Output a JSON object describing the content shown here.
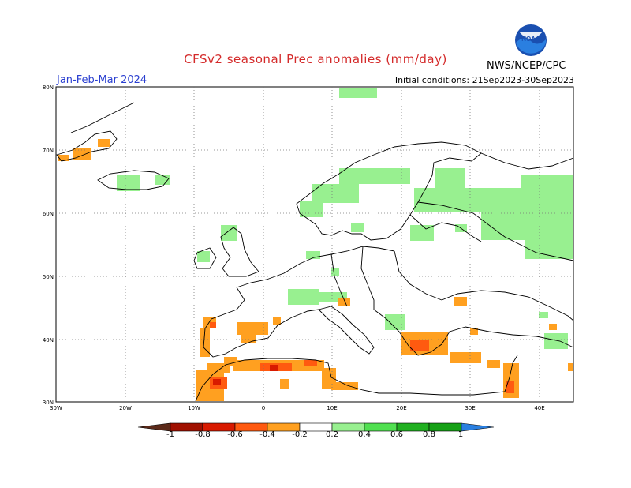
{
  "header": {
    "title": "CFSv2 seasonal Prec anomalies (mm/day)",
    "season": "Jan-Feb-Mar 2024",
    "initial_conditions": "Initial conditions: 21Sep2023-30Sep2023",
    "agency": "NWS/NCEP/CPC",
    "logo_text": "NOAA"
  },
  "map": {
    "region": "Europe",
    "lon_range": [
      -30,
      45
    ],
    "lat_range": [
      30,
      80
    ],
    "lat_labels": [
      "80N",
      "70N",
      "60N",
      "50N",
      "40N",
      "30N"
    ],
    "lon_labels": [
      "30W",
      "20W",
      "10W",
      "0",
      "10E",
      "20E",
      "30E",
      "40E"
    ]
  },
  "colorbar": {
    "labels": [
      "-1",
      "-0.8",
      "-0.6",
      "-0.4",
      "-0.2",
      "0.2",
      "0.4",
      "0.6",
      "0.8",
      "1"
    ],
    "colors": [
      "#5c2a1a",
      "#a01000",
      "#d81a00",
      "#ff5a10",
      "#ffa020",
      "#ffffff",
      "#98f090",
      "#50e050",
      "#20b020",
      "#15a015",
      "#2a7fe0"
    ]
  }
}
